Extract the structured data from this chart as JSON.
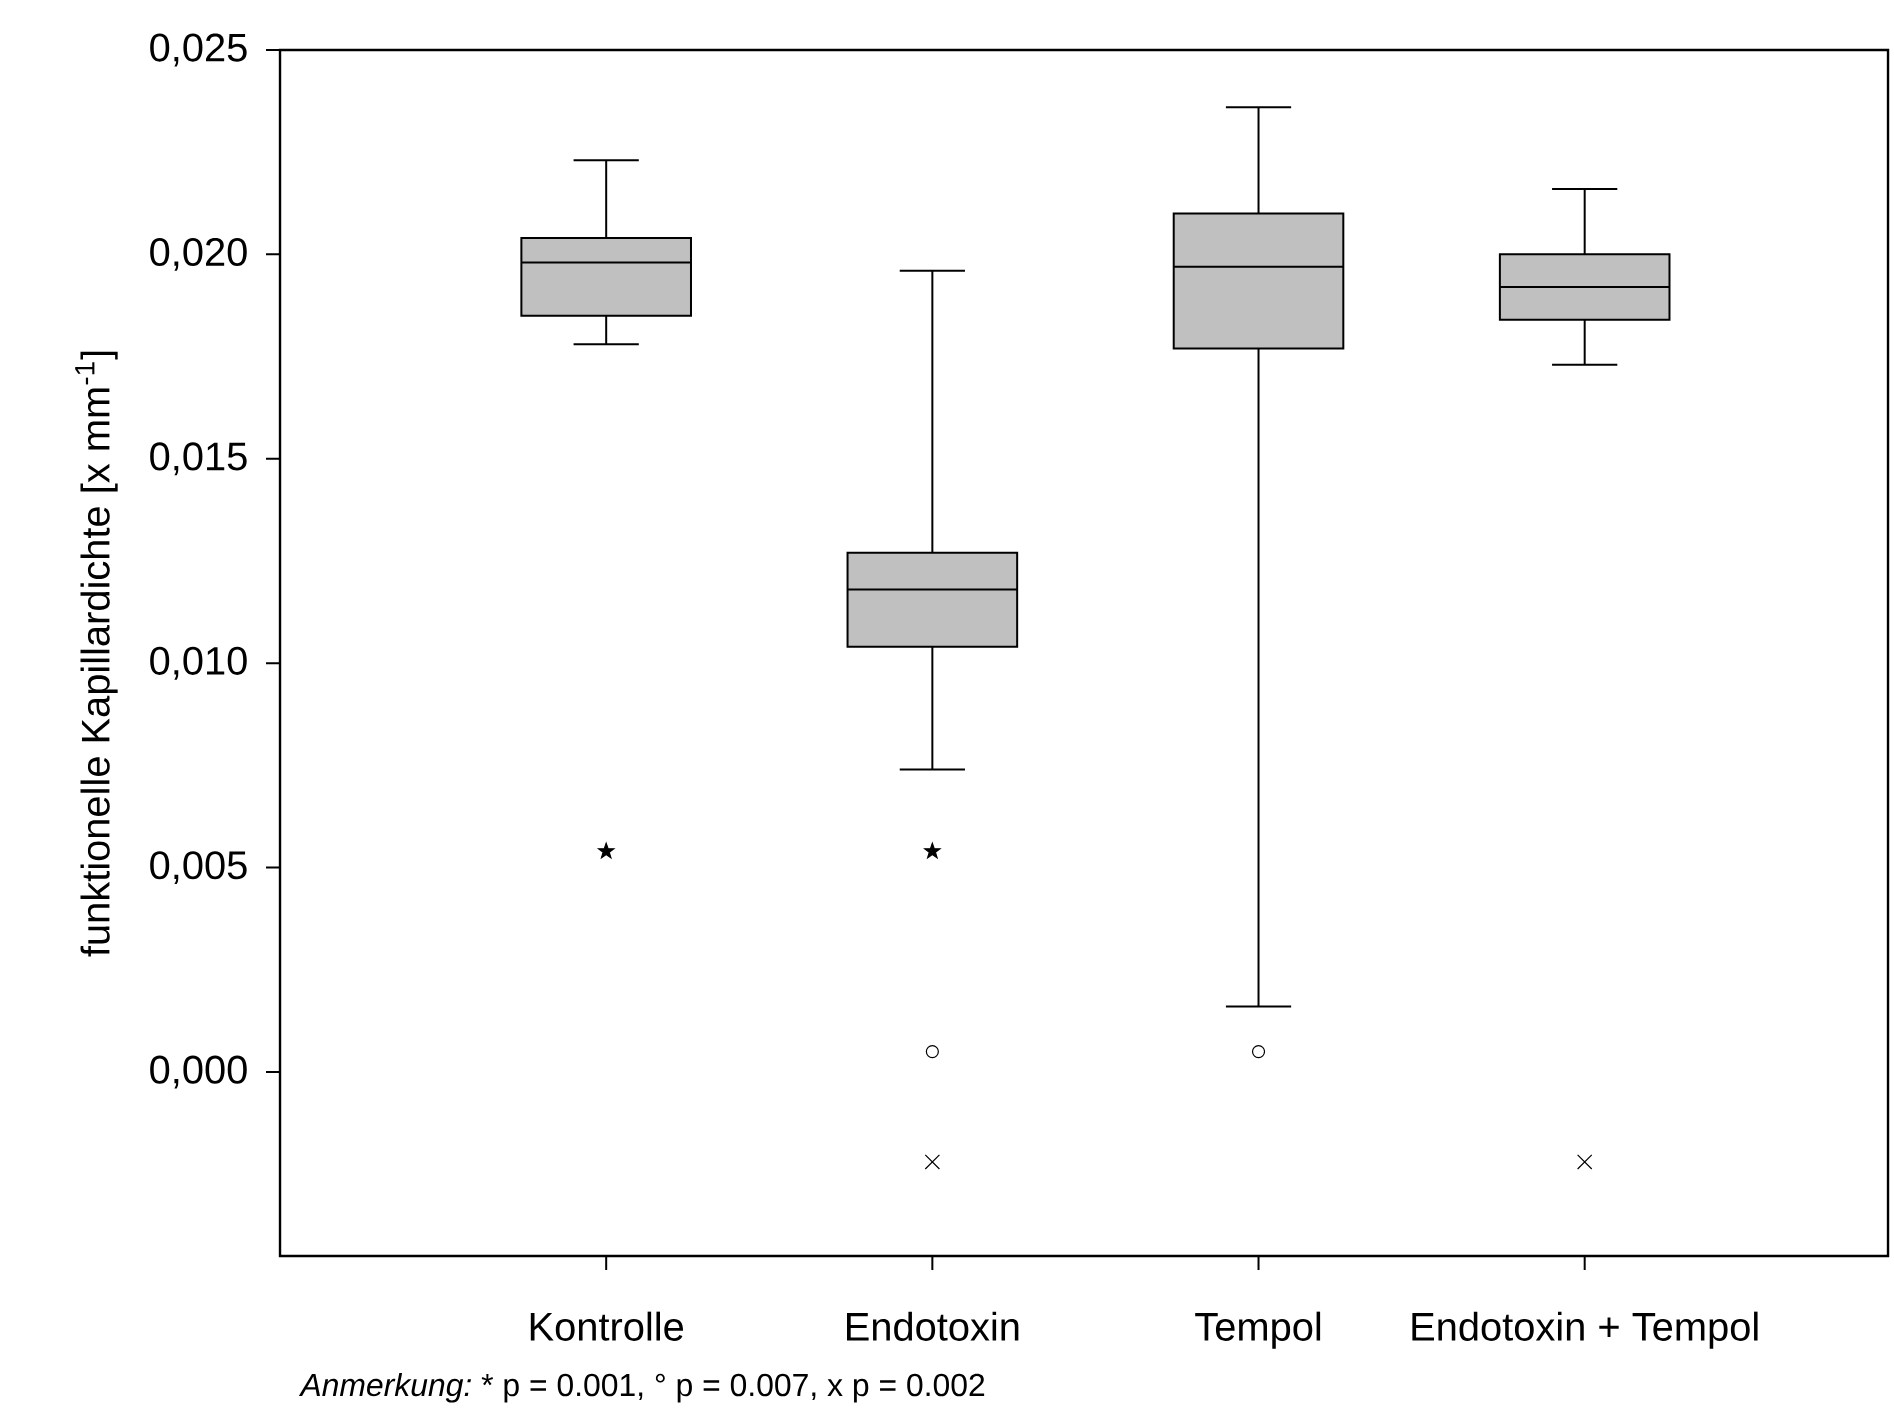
{
  "chart_data": {
    "type": "box",
    "ylabel": "funktionelle Kapillardichte [x mm$^{-1}$]",
    "categories": [
      "Kontrolle",
      "Endotoxin",
      "Tempol",
      "Endotoxin + Tempol"
    ],
    "color": "#c0c0c0",
    "boxes": [
      {
        "low": 0.0178,
        "q1": 0.0185,
        "median": 0.0198,
        "q3": 0.0204,
        "high": 0.0223
      },
      {
        "low": 0.0074,
        "q1": 0.0104,
        "median": 0.0118,
        "q3": 0.0127,
        "high": 0.0196
      },
      {
        "low": 0.0016,
        "q1": 0.0177,
        "median": 0.0197,
        "q3": 0.021,
        "high": 0.0236
      },
      {
        "low": 0.0173,
        "q1": 0.0184,
        "median": 0.0192,
        "q3": 0.02,
        "high": 0.0216
      }
    ],
    "series": [
      {
        "type": "scatter",
        "marker": "star",
        "color": "#000000",
        "x": [
          "Kontrolle",
          "Endotoxin"
        ],
        "values": [
          0.0054,
          0.0054
        ]
      },
      {
        "type": "scatter",
        "marker": "circle",
        "color": "#000000",
        "x": [
          "Endotoxin",
          "Tempol"
        ],
        "values": [
          0.0005,
          0.0005
        ]
      },
      {
        "type": "scatter",
        "marker": "cross",
        "color": "#000000",
        "x": [
          "Endotoxin",
          "Endotoxin + Tempol"
        ],
        "values": [
          -0.0022,
          -0.0022
        ]
      }
    ],
    "ylim": [
      -0.0045,
      0.025
    ],
    "yticks": [
      {
        "value": 0.0,
        "label": "0,000"
      },
      {
        "value": 0.005,
        "label": "0,005"
      },
      {
        "value": 0.01,
        "label": "0,010"
      },
      {
        "value": 0.015,
        "label": "0,015"
      },
      {
        "value": 0.02,
        "label": "0,020"
      },
      {
        "value": 0.025,
        "label": "0,025"
      }
    ],
    "annotations": [
      "Anmerkung:",
      "* p = 0.001,  ° p = 0.007, x p = 0.002"
    ]
  }
}
